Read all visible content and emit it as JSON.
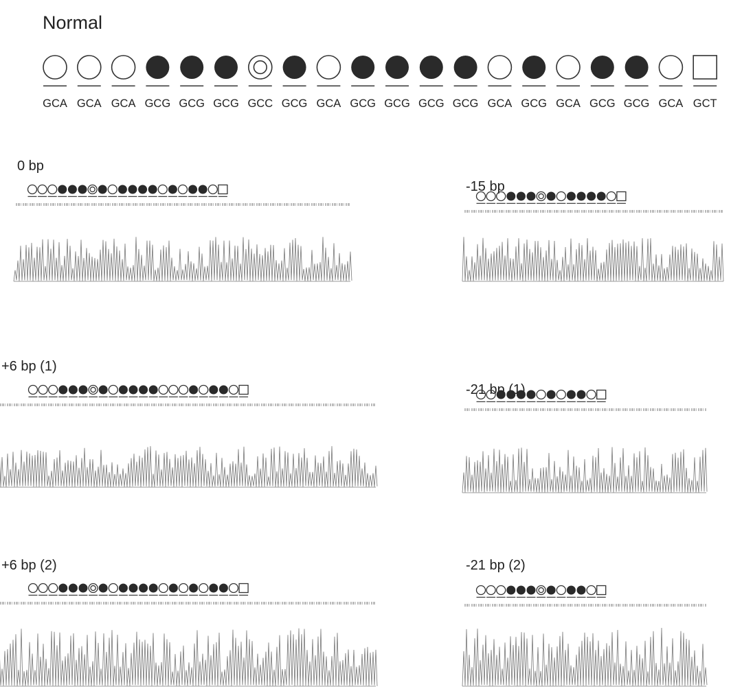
{
  "title": "Normal",
  "codons": [
    "GCA",
    "GCA",
    "GCA",
    "GCG",
    "GCG",
    "GCG",
    "GCC",
    "GCG",
    "GCA",
    "GCG",
    "GCG",
    "GCG",
    "GCG",
    "GCA",
    "GCG",
    "GCA",
    "GCG",
    "GCG",
    "GCA",
    "GCT"
  ],
  "panels": [
    {
      "label": "0 bp"
    },
    {
      "label": "-15 bp"
    },
    {
      "label": "+6 bp (1)"
    },
    {
      "label": "-21 bp (1)"
    },
    {
      "label": "+6 bp (2)"
    },
    {
      "label": "-21 bp (2)"
    }
  ]
}
